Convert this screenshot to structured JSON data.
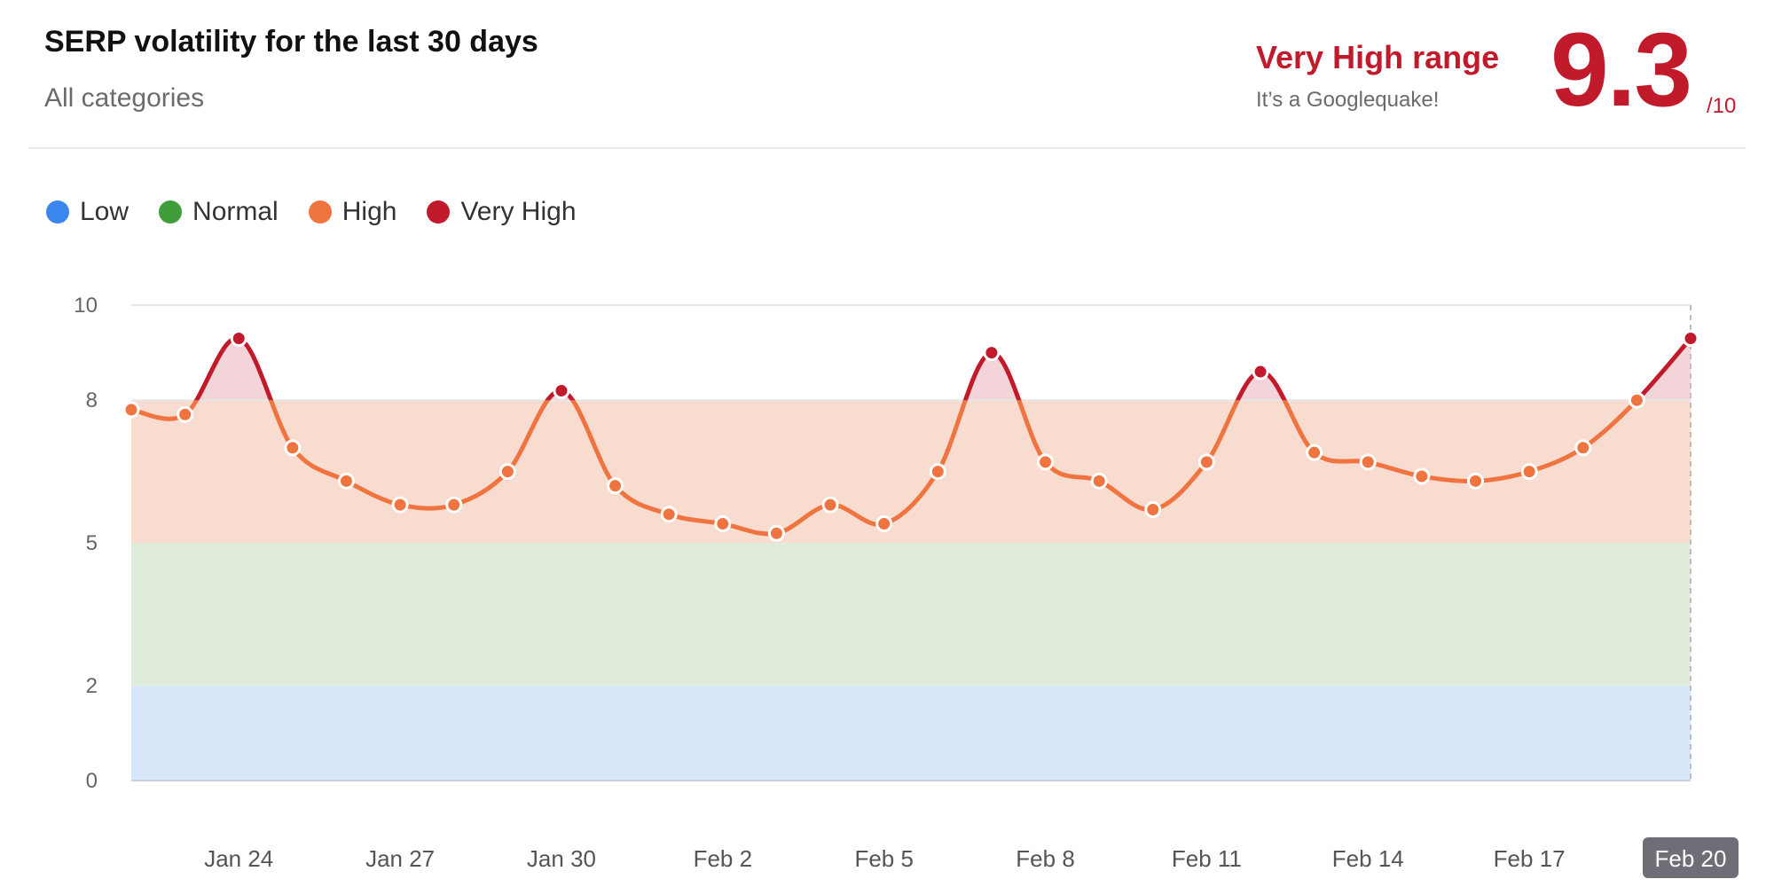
{
  "header": {
    "title": "SERP volatility for the last 30 days",
    "subtitle": "All categories",
    "range_label": "Very High range",
    "range_desc": "It’s a Googlequake!",
    "score": "9.3",
    "score_max": "/10"
  },
  "legend": [
    {
      "label": "Low",
      "color": "#3b86ee"
    },
    {
      "label": "Normal",
      "color": "#3f9e3a"
    },
    {
      "label": "High",
      "color": "#ef7440"
    },
    {
      "label": "Very High",
      "color": "#c11a2b"
    }
  ],
  "chart_data": {
    "type": "line",
    "title": "SERP volatility for the last 30 days",
    "ylim": [
      0,
      10
    ],
    "y_ticks": [
      0,
      2,
      5,
      8,
      10
    ],
    "bands": [
      {
        "name": "Low",
        "from": 0,
        "to": 2,
        "color": "#d8e6fa"
      },
      {
        "name": "Normal",
        "from": 2,
        "to": 5,
        "color": "#dfecd9"
      },
      {
        "name": "High",
        "from": 5,
        "to": 8,
        "color": "#f8dcd0"
      },
      {
        "name": "Very High",
        "from": 8,
        "to": 10,
        "color": "#f3d4d8"
      }
    ],
    "x": [
      "Jan 22",
      "Jan 23",
      "Jan 24",
      "Jan 25",
      "Jan 26",
      "Jan 27",
      "Jan 28",
      "Jan 29",
      "Jan 30",
      "Jan 31",
      "Feb 1",
      "Feb 2",
      "Feb 3",
      "Feb 4",
      "Feb 5",
      "Feb 6",
      "Feb 7",
      "Feb 8",
      "Feb 9",
      "Feb 10",
      "Feb 11",
      "Feb 12",
      "Feb 13",
      "Feb 14",
      "Feb 15",
      "Feb 16",
      "Feb 17",
      "Feb 18",
      "Feb 19",
      "Feb 20"
    ],
    "x_tick_labels": [
      "Jan 24",
      "Jan 27",
      "Jan 30",
      "Feb 2",
      "Feb 5",
      "Feb 8",
      "Feb 11",
      "Feb 14",
      "Feb 17",
      "Feb 20"
    ],
    "highlighted_x": "Feb 20",
    "series": [
      {
        "values": [
          7.8,
          7.7,
          9.3,
          7.0,
          6.3,
          5.8,
          5.8,
          6.5,
          8.2,
          6.2,
          5.6,
          5.4,
          5.2,
          5.8,
          5.4,
          6.5,
          9.0,
          6.7,
          6.3,
          5.7,
          6.7,
          8.6,
          6.9,
          6.7,
          6.4,
          6.3,
          6.5,
          7.0,
          8.0,
          9.3
        ],
        "line_color": "#ef7440",
        "high_color": "#c11a2b"
      }
    ]
  }
}
